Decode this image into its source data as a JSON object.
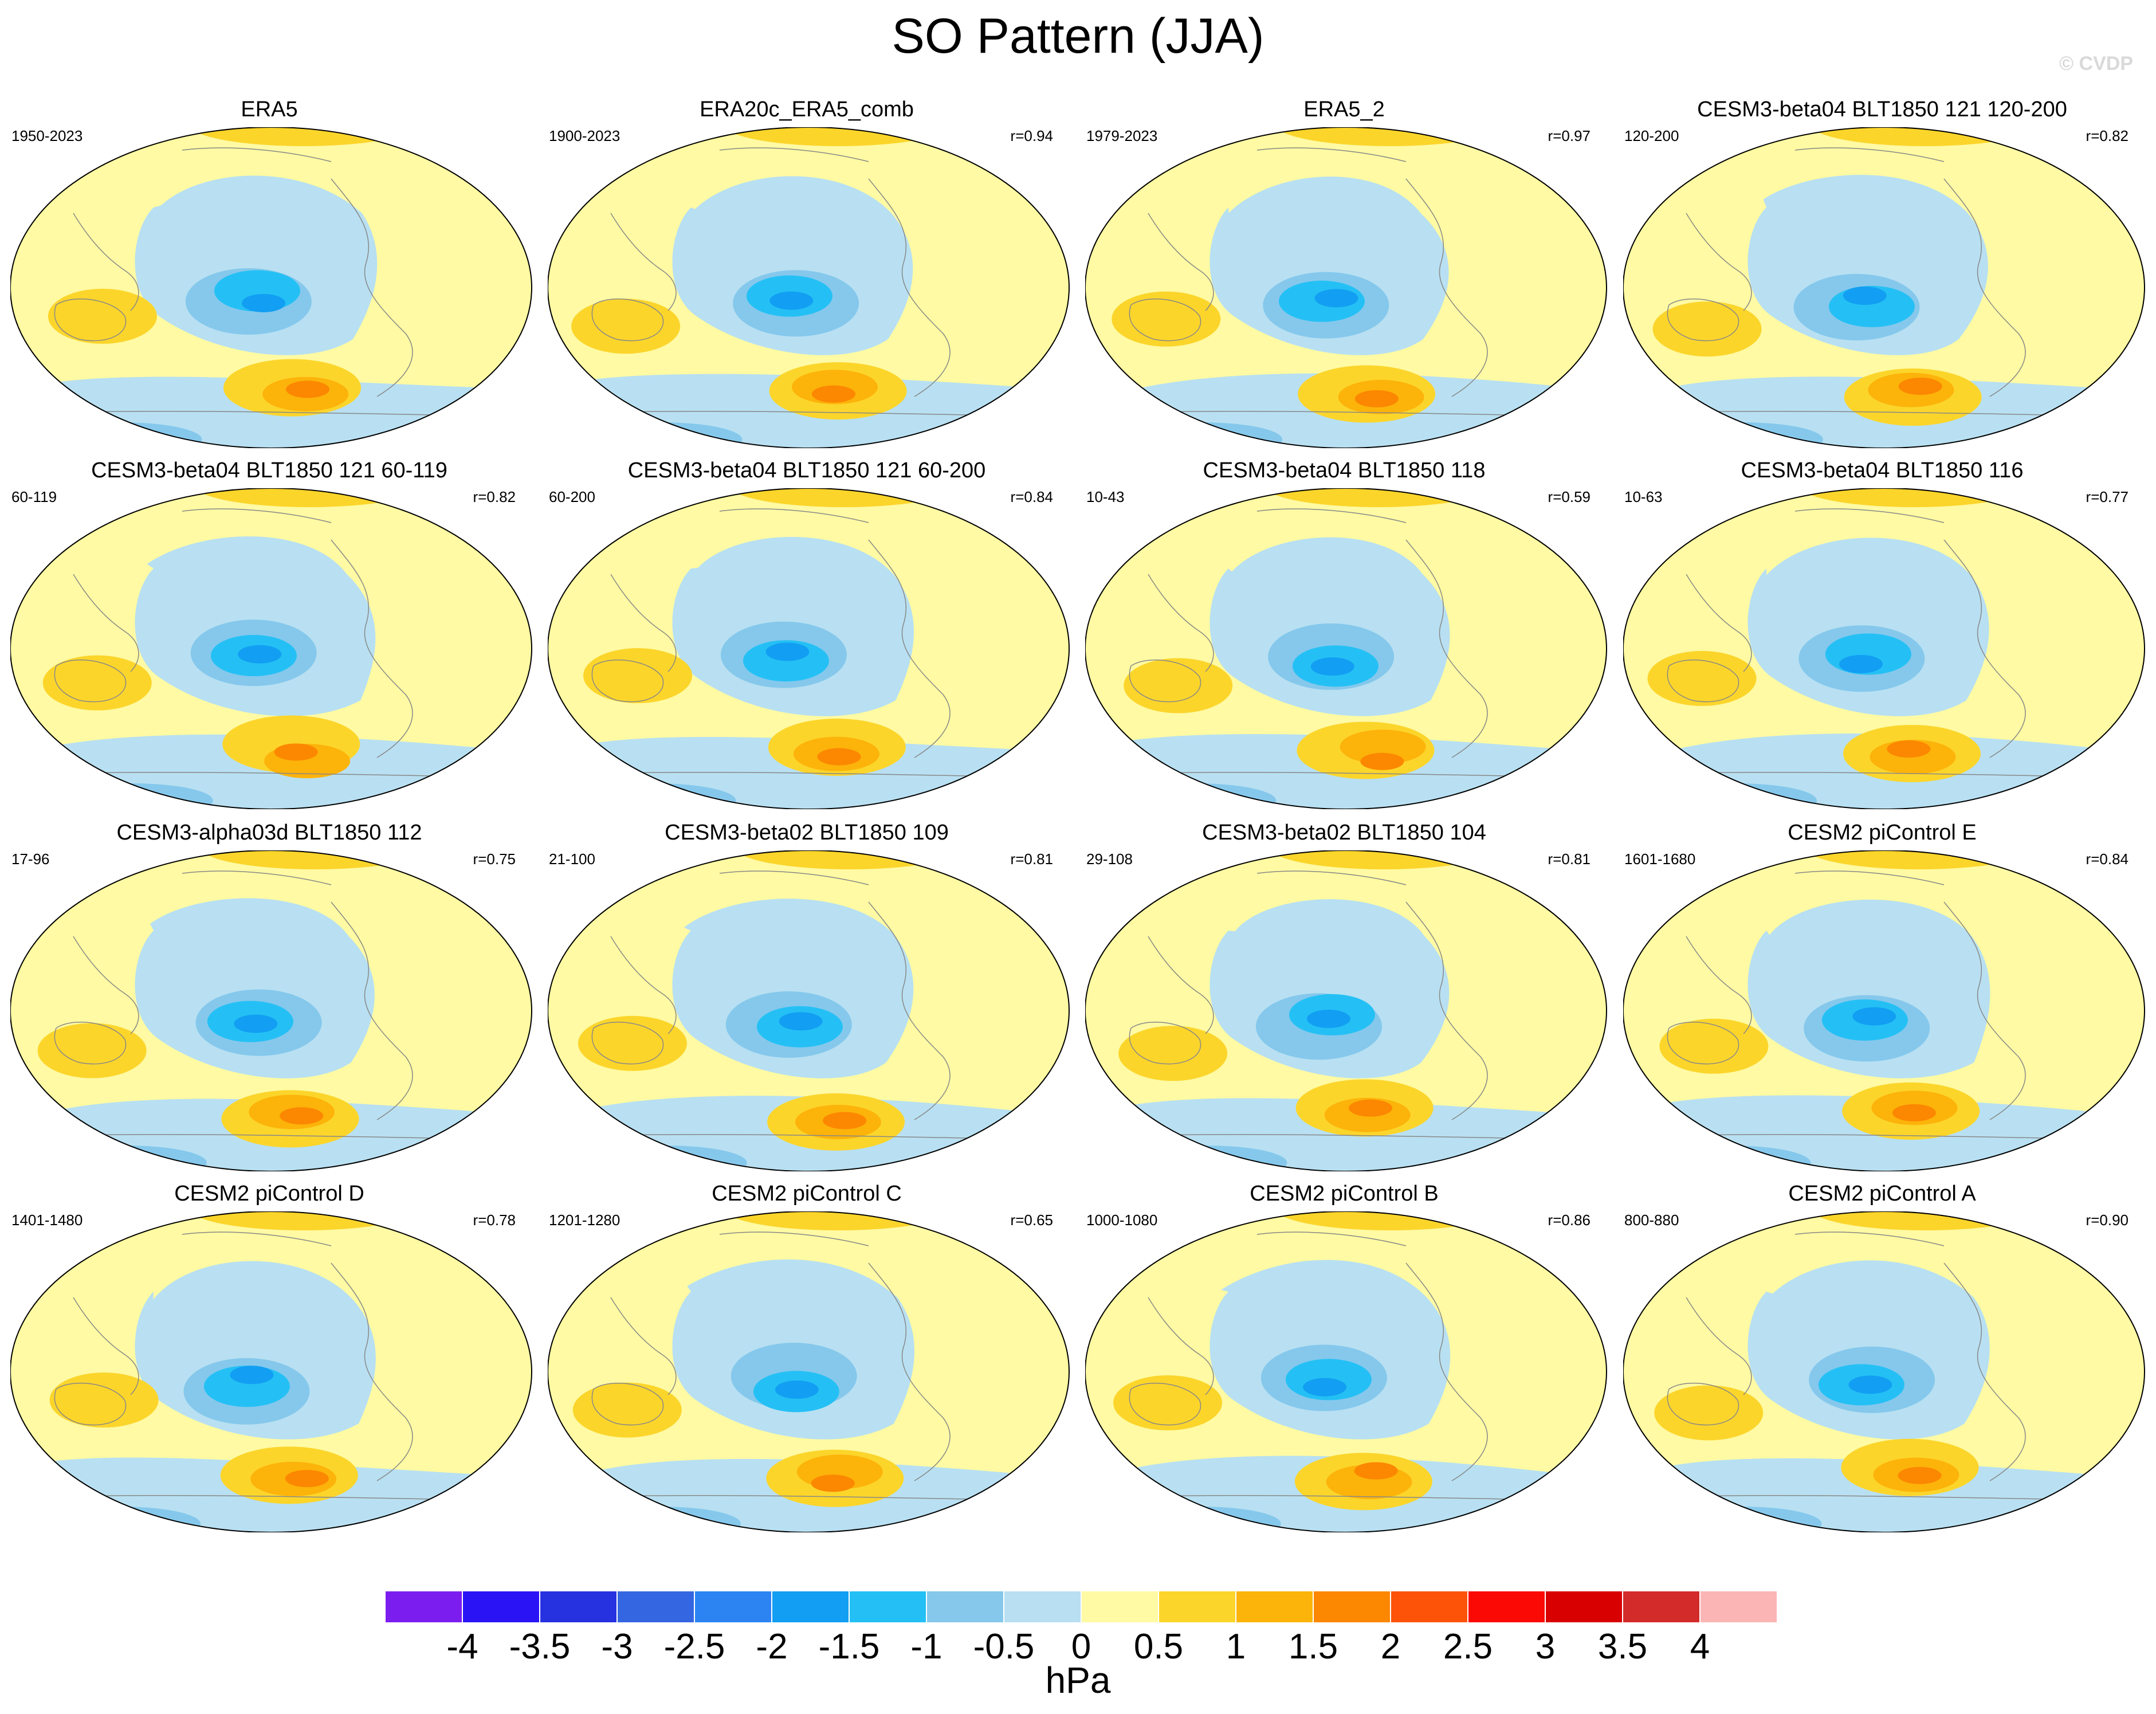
{
  "title": "SO Pattern (JJA)",
  "watermark": "© CVDP",
  "unit": "hPa",
  "colorbar": {
    "labels": [
      "-4",
      "-3.5",
      "-3",
      "-2.5",
      "-2",
      "-1.5",
      "-1",
      "-0.5",
      "0",
      "0.5",
      "1",
      "1.5",
      "2",
      "2.5",
      "3",
      "3.5",
      "4"
    ],
    "colors": [
      "#7c1df0",
      "#2a14f5",
      "#2631e0",
      "#3366e0",
      "#2b84f2",
      "#129ef2",
      "#24c0f5",
      "#85c8ec",
      "#b8e0f2",
      "#fffaa3",
      "#fcd52b",
      "#fcb30a",
      "#fc8700",
      "#fc5308",
      "#fb0a05",
      "#d80000",
      "#d32a2a",
      "#fbb5b5"
    ]
  },
  "panels": [
    {
      "name": "ERA5",
      "period": "1950-2023",
      "r": ""
    },
    {
      "name": "ERA20c_ERA5_comb",
      "period": "1900-2023",
      "r": "r=0.94"
    },
    {
      "name": "ERA5_2",
      "period": "1979-2023",
      "r": "r=0.97"
    },
    {
      "name": "CESM3-beta04 BLT1850 121 120-200",
      "period": "120-200",
      "r": "r=0.82"
    },
    {
      "name": "CESM3-beta04 BLT1850 121 60-119",
      "period": "60-119",
      "r": "r=0.82"
    },
    {
      "name": "CESM3-beta04 BLT1850 121 60-200",
      "period": "60-200",
      "r": "r=0.84"
    },
    {
      "name": "CESM3-beta04 BLT1850 118",
      "period": "10-43",
      "r": "r=0.59"
    },
    {
      "name": "CESM3-beta04 BLT1850 116",
      "period": "10-63",
      "r": "r=0.77"
    },
    {
      "name": "CESM3-alpha03d BLT1850 112",
      "period": "17-96",
      "r": "r=0.75"
    },
    {
      "name": "CESM3-beta02 BLT1850 109",
      "period": "21-100",
      "r": "r=0.81"
    },
    {
      "name": "CESM3-beta02 BLT1850 104",
      "period": "29-108",
      "r": "r=0.81"
    },
    {
      "name": "CESM2 piControl E",
      "period": "1601-1680",
      "r": "r=0.84"
    },
    {
      "name": "CESM2 piControl D",
      "period": "1401-1480",
      "r": "r=0.78"
    },
    {
      "name": "CESM2 piControl C",
      "period": "1201-1280",
      "r": "r=0.65"
    },
    {
      "name": "CESM2 piControl B",
      "period": "1000-1080",
      "r": "r=0.86"
    },
    {
      "name": "CESM2 piControl A",
      "period": "800-880",
      "r": "r=0.90"
    }
  ]
}
